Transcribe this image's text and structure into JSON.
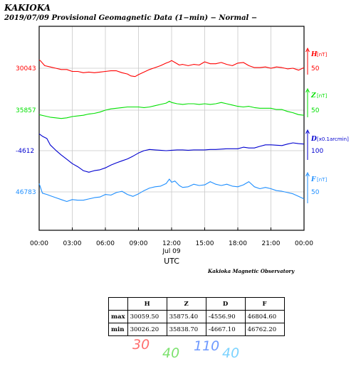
{
  "header": {
    "station": "KAKIOKA",
    "subtitle": "2019/07/09  Provisional Geomagnetic Data (1−min)  − Normal −"
  },
  "credit": "Kakioka Magnetic Observatory",
  "chart_data": {
    "type": "line",
    "xlabel": "UTC",
    "date_label": "Jul 09",
    "x_ticks": [
      "00:00",
      "03:00",
      "06:00",
      "09:00",
      "12:00",
      "15:00",
      "18:00",
      "21:00",
      "00:00"
    ],
    "xlim_hours": [
      0,
      24
    ],
    "grid": true,
    "series": [
      {
        "name": "H",
        "unit": "[nT]",
        "color": "#ff0000",
        "baseline_label": "30043",
        "scale_label": "50",
        "x": [
          0,
          0.1,
          0.5,
          1,
          1.5,
          2,
          2.5,
          3,
          3.5,
          4,
          4.5,
          5,
          5.5,
          6,
          6.5,
          7,
          7.5,
          8,
          8.3,
          8.7,
          9,
          9.5,
          10,
          10.5,
          11,
          11.5,
          11.8,
          12,
          12.3,
          12.7,
          13,
          13.5,
          14,
          14.5,
          15,
          15.5,
          16,
          16.5,
          17,
          17.5,
          18,
          18.5,
          19,
          19.5,
          20,
          20.5,
          21,
          21.5,
          22,
          22.5,
          23,
          23.5,
          24
        ],
        "values": [
          30056,
          30055,
          30047,
          30045,
          30043,
          30041,
          30041,
          30038,
          30038,
          30036,
          30037,
          30036,
          30037,
          30038,
          30039,
          30039,
          30036,
          30034,
          30031,
          30030,
          30033,
          30037,
          30041,
          30044,
          30047,
          30051,
          30053,
          30055,
          30052,
          30048,
          30049,
          30047,
          30049,
          30048,
          30053,
          30050,
          30050,
          30052,
          30049,
          30047,
          30051,
          30052,
          30047,
          30044,
          30044,
          30045,
          30043,
          30045,
          30044,
          30042,
          30043,
          30040,
          30044
        ]
      },
      {
        "name": "Z",
        "unit": "[nT]",
        "color": "#00e000",
        "baseline_label": "35857",
        "scale_label": "50",
        "x": [
          0,
          0.5,
          1,
          1.5,
          2,
          2.5,
          3,
          3.5,
          4,
          4.5,
          5,
          5.5,
          6,
          6.5,
          7,
          7.5,
          8,
          8.5,
          9,
          9.5,
          10,
          10.5,
          11,
          11.5,
          11.8,
          12,
          12.5,
          13,
          13.5,
          14,
          14.5,
          15,
          15.5,
          16,
          16.5,
          17,
          17.5,
          18,
          18.5,
          19,
          19.5,
          20,
          20.5,
          21,
          21.5,
          22,
          22.5,
          23,
          23.5,
          24
        ],
        "values": [
          35850,
          35848,
          35846,
          35845,
          35844,
          35845,
          35847,
          35848,
          35849,
          35851,
          35852,
          35854,
          35857,
          35859,
          35860,
          35861,
          35862,
          35862,
          35862,
          35861,
          35862,
          35864,
          35866,
          35868,
          35871,
          35869,
          35867,
          35866,
          35867,
          35867,
          35866,
          35867,
          35866,
          35867,
          35869,
          35867,
          35865,
          35863,
          35862,
          35863,
          35861,
          35860,
          35860,
          35860,
          35858,
          35858,
          35855,
          35853,
          35850,
          35849
        ]
      },
      {
        "name": "D",
        "unit": "[x0.1arcmin]",
        "color": "#0000d0",
        "baseline_label": "-4612",
        "scale_label": "100",
        "x": [
          0,
          0.3,
          0.7,
          1,
          1.5,
          2,
          2.5,
          3,
          3.5,
          4,
          4.5,
          5,
          5.5,
          6,
          6.5,
          7,
          7.5,
          8,
          8.5,
          9,
          9.5,
          10,
          10.5,
          11,
          11.5,
          12,
          12.5,
          13,
          13.5,
          14,
          14.5,
          15,
          15.5,
          16,
          16.5,
          17,
          17.5,
          18,
          18.5,
          19,
          19.5,
          20,
          20.5,
          21,
          21.5,
          22,
          22.5,
          23,
          23.5,
          24
        ],
        "values": [
          -4569,
          -4575,
          -4581,
          -4597,
          -4611,
          -4623,
          -4634,
          -4645,
          -4653,
          -4663,
          -4667,
          -4663,
          -4661,
          -4656,
          -4649,
          -4643,
          -4638,
          -4633,
          -4626,
          -4618,
          -4612,
          -4609,
          -4610,
          -4611,
          -4612,
          -4611,
          -4610,
          -4610,
          -4611,
          -4610,
          -4610,
          -4610,
          -4609,
          -4609,
          -4608,
          -4607,
          -4607,
          -4607,
          -4603,
          -4605,
          -4605,
          -4601,
          -4597,
          -4597,
          -4598,
          -4599,
          -4595,
          -4592,
          -4594,
          -4595
        ]
      },
      {
        "name": "F",
        "unit": "[nT]",
        "color": "#1f8fff",
        "baseline_label": "46783",
        "scale_label": "50",
        "x": [
          0,
          0.3,
          0.7,
          1,
          1.5,
          2,
          2.5,
          3,
          3.5,
          4,
          4.5,
          5,
          5.5,
          6,
          6.5,
          7,
          7.5,
          8,
          8.5,
          9,
          9.5,
          10,
          10.5,
          11,
          11.5,
          11.8,
          12,
          12.3,
          12.7,
          13,
          13.5,
          14,
          14.5,
          15,
          15.5,
          16,
          16.5,
          17,
          17.5,
          18,
          18.5,
          19,
          19.5,
          20,
          20.5,
          21,
          21.5,
          22,
          22.5,
          23,
          23.5,
          24
        ],
        "values": [
          46796,
          46781,
          46779,
          46777,
          46774,
          46771,
          46768,
          46771,
          46770,
          46770,
          46772,
          46774,
          46775,
          46779,
          46778,
          46782,
          46784,
          46779,
          46776,
          46780,
          46785,
          46789,
          46791,
          46792,
          46796,
          46803,
          46798,
          46800,
          46793,
          46790,
          46791,
          46795,
          46793,
          46794,
          46799,
          46795,
          46793,
          46795,
          46792,
          46791,
          46794,
          46799,
          46791,
          46788,
          46790,
          46788,
          46785,
          46784,
          46782,
          46780,
          46776,
          46772
        ]
      }
    ]
  },
  "stats_table": {
    "headers": [
      "H",
      "Z",
      "D",
      "F"
    ],
    "max_label": "max",
    "min_label": "min",
    "max": [
      "30059.50",
      "35875.40",
      "-4556.90",
      "46804.60"
    ],
    "min": [
      "30026.20",
      "35838.70",
      "-4667.10",
      "46762.20"
    ]
  },
  "handwritten_scales": [
    {
      "text": "30",
      "color": "#ff5555"
    },
    {
      "text": "40",
      "color": "#66dd55"
    },
    {
      "text": "110",
      "color": "#5588ff"
    },
    {
      "text": "40",
      "color": "#66ccff"
    }
  ]
}
